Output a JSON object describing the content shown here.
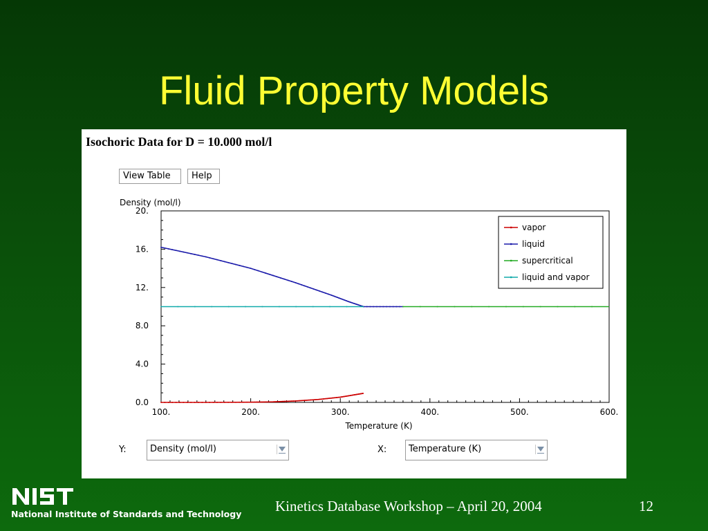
{
  "slide": {
    "title": "Fluid Property Models",
    "footer": "Kinetics Database Workshop – April 20, 2004",
    "page_number": "12",
    "logo_text": "NIST",
    "logo_subtitle": "National Institute of Standards and Technology"
  },
  "panel": {
    "title": "Isochoric Data for D = 10.000 mol/l",
    "buttons": {
      "view_table": "View Table",
      "help": "Help"
    },
    "y_select": {
      "label": "Y:",
      "value": "Density (mol/l)"
    },
    "x_select": {
      "label": "X:",
      "value": "Temperature (K)"
    }
  },
  "chart_data": {
    "type": "line",
    "ylabel": "Density (mol/l)",
    "xlabel": "Temperature (K)",
    "xlim": [
      100,
      600
    ],
    "ylim": [
      0,
      20
    ],
    "x_ticks": [
      "100.",
      "200.",
      "300.",
      "400.",
      "500.",
      "600."
    ],
    "y_ticks": [
      "0.0",
      "4.0",
      "8.0",
      "12.",
      "16.",
      "20."
    ],
    "legend": "top-right",
    "series": [
      {
        "name": "vapor",
        "color": "#cc0000",
        "x": [
          100,
          150,
          200,
          225,
          250,
          275,
          300,
          315,
          326
        ],
        "y": [
          0.0,
          0.0,
          0.02,
          0.06,
          0.15,
          0.3,
          0.55,
          0.78,
          0.95
        ]
      },
      {
        "name": "liquid",
        "color": "#1a1aaa",
        "x": [
          100,
          150,
          200,
          250,
          290,
          310,
          326,
          370
        ],
        "y": [
          16.2,
          15.2,
          14.0,
          12.5,
          11.2,
          10.5,
          10.0,
          10.0
        ]
      },
      {
        "name": "supercritical",
        "color": "#22aa22",
        "x": [
          370,
          600
        ],
        "y": [
          10.0,
          10.0
        ]
      },
      {
        "name": "liquid and vapor",
        "color": "#11aaaa",
        "x": [
          100,
          326
        ],
        "y": [
          10.0,
          10.0
        ]
      }
    ]
  }
}
